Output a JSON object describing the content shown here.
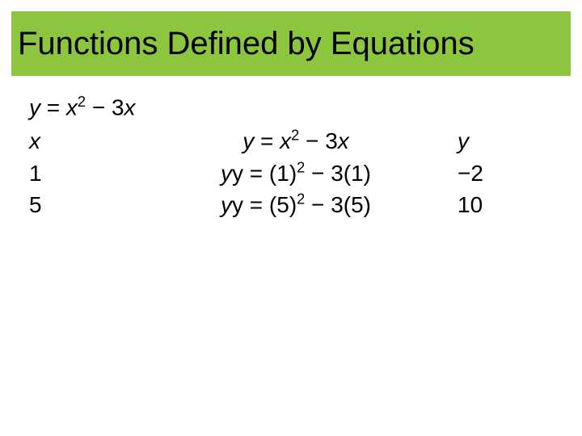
{
  "title": "Functions Defined by Equations",
  "colors": {
    "title_bg": "#8cc63f",
    "title_text": "#000000",
    "body_text": "#000000",
    "page_bg": "#ffffff"
  },
  "typography": {
    "title_fontsize": 40,
    "body_fontsize": 28,
    "font_family": "Arial"
  },
  "equation": {
    "lhs": "y",
    "rhs_var": "x",
    "exp": "2",
    "minus": "−",
    "coef": "3",
    "rhs_var2": "x"
  },
  "table": {
    "headers": {
      "x": "x",
      "mid_lhs": "y",
      "mid_eq": "=",
      "mid_var": "x",
      "mid_exp": "2",
      "mid_minus": "−",
      "mid_coef": "3",
      "mid_var2": "x",
      "y": "y"
    },
    "rows": [
      {
        "x": "1",
        "mid_prefix": "y = (",
        "mid_val1": "1",
        "mid_paren1": ")",
        "mid_exp": "2",
        "mid_minus": " − ",
        "mid_coef": "3(",
        "mid_val2": "1",
        "mid_paren2": ")",
        "y": "−2"
      },
      {
        "x": "5",
        "mid_prefix": "y = (",
        "mid_val1": "5",
        "mid_paren1": ")",
        "mid_exp": "2",
        "mid_minus": " − ",
        "mid_coef": "3(",
        "mid_val2": "5",
        "mid_paren2": ")",
        "y": "10"
      }
    ]
  }
}
